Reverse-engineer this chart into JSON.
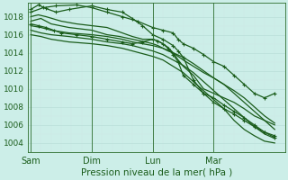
{
  "xlabel": "Pression niveau de la mer( hPa )",
  "bg_color": "#cceee8",
  "grid_major_color": "#b8ddd8",
  "grid_minor_color": "#cce8e4",
  "line_color": "#1a5c1a",
  "x_ticks": [
    0,
    48,
    96,
    144
  ],
  "x_labels": [
    "Sam",
    "Dim",
    "Lun",
    "Mar"
  ],
  "ylim": [
    1003.0,
    1019.5
  ],
  "yticks": [
    1004,
    1006,
    1008,
    1010,
    1012,
    1014,
    1016,
    1018
  ],
  "xlim": [
    -2,
    200
  ],
  "line_width": 0.9,
  "marker_size": 2.5,
  "lines": [
    {
      "x": [
        0,
        6,
        12,
        20,
        30,
        48,
        60,
        72,
        80,
        88,
        96,
        104,
        112,
        116,
        120,
        128,
        136,
        144,
        152,
        160,
        168,
        176,
        184,
        192
      ],
      "y": [
        1018.8,
        1019.3,
        1018.9,
        1018.5,
        1018.8,
        1019.2,
        1018.8,
        1018.5,
        1017.8,
        1017.0,
        1016.0,
        1015.5,
        1014.8,
        1014.2,
        1013.5,
        1011.0,
        1009.5,
        1009.0,
        1008.2,
        1007.5,
        1006.8,
        1006.0,
        1005.2,
        1004.8
      ],
      "style": "marker",
      "lw": 0.9
    },
    {
      "x": [
        0,
        6,
        12,
        24,
        36,
        48,
        60,
        72,
        80,
        88,
        96,
        100,
        104,
        108,
        112,
        116,
        120,
        128,
        136,
        144,
        152,
        160,
        168,
        176,
        184,
        192
      ],
      "y": [
        1018.0,
        1018.2,
        1018.0,
        1017.5,
        1017.2,
        1017.0,
        1016.8,
        1016.2,
        1015.8,
        1015.5,
        1015.5,
        1015.3,
        1015.0,
        1014.6,
        1014.0,
        1013.2,
        1012.5,
        1011.5,
        1010.0,
        1009.5,
        1009.0,
        1008.5,
        1007.8,
        1007.0,
        1006.5,
        1006.0
      ],
      "style": "solid",
      "lw": 0.9
    },
    {
      "x": [
        0,
        8,
        16,
        30,
        48,
        60,
        70,
        80,
        90,
        96,
        100,
        104,
        108,
        112,
        120,
        128,
        136,
        144,
        152,
        160,
        168,
        176,
        184,
        192
      ],
      "y": [
        1017.5,
        1017.8,
        1017.2,
        1016.8,
        1016.5,
        1016.0,
        1015.8,
        1015.5,
        1015.2,
        1015.0,
        1014.8,
        1014.5,
        1014.2,
        1014.0,
        1013.2,
        1012.5,
        1011.8,
        1011.2,
        1010.5,
        1009.8,
        1009.0,
        1008.0,
        1007.0,
        1006.2
      ],
      "style": "solid",
      "lw": 0.9
    },
    {
      "x": [
        0,
        8,
        16,
        30,
        48,
        60,
        72,
        80,
        88,
        96,
        104,
        112,
        120,
        128,
        136,
        144,
        152,
        160,
        168,
        176,
        184,
        192
      ],
      "y": [
        1017.0,
        1016.8,
        1016.5,
        1016.2,
        1016.0,
        1015.8,
        1015.5,
        1015.2,
        1015.0,
        1014.8,
        1014.5,
        1014.0,
        1013.5,
        1012.8,
        1012.0,
        1011.2,
        1010.5,
        1009.5,
        1008.5,
        1007.5,
        1006.5,
        1005.5
      ],
      "style": "solid",
      "lw": 0.9
    },
    {
      "x": [
        0,
        8,
        16,
        30,
        48,
        60,
        72,
        80,
        88,
        96,
        104,
        112,
        120,
        128,
        136,
        144,
        152,
        160,
        168,
        176,
        184,
        192
      ],
      "y": [
        1016.5,
        1016.2,
        1016.0,
        1015.8,
        1015.5,
        1015.2,
        1015.0,
        1014.8,
        1014.5,
        1014.2,
        1013.8,
        1013.2,
        1012.6,
        1011.8,
        1010.8,
        1009.8,
        1008.8,
        1007.8,
        1006.8,
        1005.8,
        1005.0,
        1004.5
      ],
      "style": "solid",
      "lw": 0.9
    },
    {
      "x": [
        0,
        8,
        16,
        30,
        48,
        60,
        72,
        80,
        88,
        96,
        104,
        112,
        120,
        128,
        136,
        144,
        152,
        160,
        168,
        176,
        184,
        192
      ],
      "y": [
        1016.0,
        1015.8,
        1015.5,
        1015.2,
        1015.0,
        1014.8,
        1014.5,
        1014.2,
        1013.9,
        1013.6,
        1013.2,
        1012.5,
        1011.8,
        1010.8,
        1009.8,
        1008.8,
        1007.8,
        1006.5,
        1005.5,
        1004.8,
        1004.2,
        1004.0
      ],
      "style": "solid",
      "lw": 0.9
    },
    {
      "x": [
        0,
        6,
        12,
        18,
        24,
        36,
        48,
        60,
        72,
        80,
        88,
        96,
        100,
        104,
        108,
        112,
        116,
        120,
        128,
        136,
        144,
        152,
        160,
        168,
        176,
        184,
        192
      ],
      "y": [
        1017.2,
        1017.0,
        1016.8,
        1016.5,
        1016.2,
        1016.0,
        1015.8,
        1015.5,
        1015.2,
        1015.0,
        1015.2,
        1015.5,
        1015.3,
        1015.0,
        1014.5,
        1013.8,
        1013.0,
        1011.5,
        1010.5,
        1009.5,
        1008.5,
        1007.8,
        1007.2,
        1006.5,
        1005.8,
        1005.2,
        1004.6
      ],
      "style": "marker",
      "lw": 0.9
    },
    {
      "x": [
        0,
        10,
        20,
        36,
        48,
        60,
        72,
        84,
        96,
        104,
        112,
        116,
        120,
        128,
        136,
        144,
        152,
        160,
        168,
        176,
        184,
        192
      ],
      "y": [
        1018.5,
        1019.0,
        1019.2,
        1019.3,
        1019.0,
        1018.5,
        1018.0,
        1017.5,
        1016.8,
        1016.5,
        1016.2,
        1015.5,
        1015.0,
        1014.5,
        1013.8,
        1013.0,
        1012.5,
        1011.5,
        1010.5,
        1009.5,
        1009.0,
        1009.5
      ],
      "style": "marker_dense",
      "lw": 0.9
    }
  ]
}
